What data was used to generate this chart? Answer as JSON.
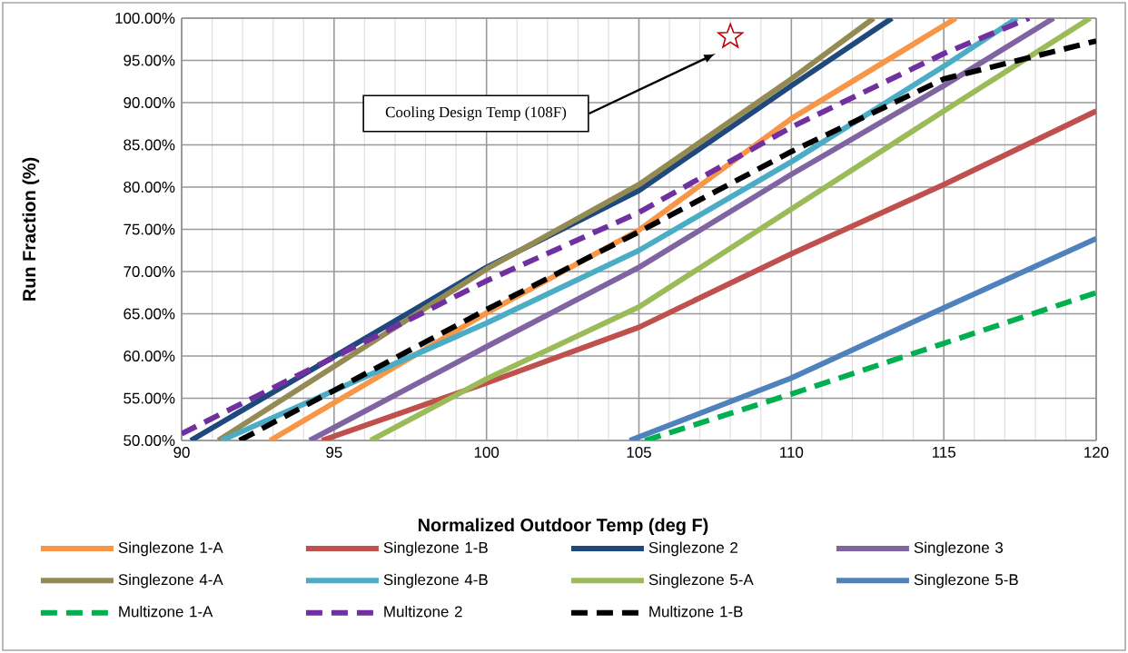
{
  "chart_data": {
    "type": "line",
    "xlabel": "Normalized Outdoor Temp (deg F)",
    "ylabel": "Run Fraction (%)",
    "xlim": [
      90,
      120
    ],
    "xticks": [
      90,
      95,
      100,
      105,
      110,
      115,
      120
    ],
    "ylim": [
      50,
      100
    ],
    "yticks": [
      {
        "value": 50,
        "label": "50.00%"
      },
      {
        "value": 55,
        "label": "55.00%"
      },
      {
        "value": 60,
        "label": "60.00%"
      },
      {
        "value": 65,
        "label": "65.00%"
      },
      {
        "value": 70,
        "label": "70.00%"
      },
      {
        "value": 75,
        "label": "75.00%"
      },
      {
        "value": 80,
        "label": "80.00%"
      },
      {
        "value": 85,
        "label": "85.00%"
      },
      {
        "value": 90,
        "label": "90.00%"
      },
      {
        "value": 95,
        "label": "95.00%"
      },
      {
        "value": 100,
        "label": "100.00%"
      }
    ],
    "grid": true,
    "legend": "bottom",
    "annotations": [
      "Cooling  Design Temp (108F)"
    ],
    "series": [
      {
        "name": "Singlezone 1-A",
        "color": "#f79646",
        "x": [
          92.9,
          100,
          105,
          110,
          115.4
        ],
        "values": [
          50,
          65.1,
          74.9,
          88.1,
          100
        ]
      },
      {
        "name": "Singlezone 1-B",
        "color": "#c0504d",
        "x": [
          94.6,
          100,
          105,
          110,
          115,
          120
        ],
        "values": [
          50,
          56.8,
          63.4,
          72.1,
          80.3,
          89
        ]
      },
      {
        "name": "Singlezone 2",
        "color": "#1f497d",
        "x": [
          90.3,
          100,
          105,
          110,
          113.3
        ],
        "values": [
          50,
          70.5,
          79.6,
          92,
          100
        ]
      },
      {
        "name": "Singlezone 3",
        "color": "#8064a2",
        "x": [
          94.2,
          100,
          105,
          110,
          115,
          118.6
        ],
        "values": [
          50,
          61.1,
          70.5,
          81.5,
          92,
          100
        ]
      },
      {
        "name": "Singlezone 4-A",
        "color": "#948a54",
        "x": [
          91.2,
          100,
          105,
          110,
          112.7
        ],
        "values": [
          50,
          70.3,
          80.3,
          92.8,
          100
        ]
      },
      {
        "name": "Singlezone 4-B",
        "color": "#4bacc6",
        "x": [
          91.3,
          100,
          105,
          110,
          115,
          117.4
        ],
        "values": [
          50,
          63.9,
          72.5,
          83,
          94.3,
          100
        ]
      },
      {
        "name": "Singlezone 5-A",
        "color": "#9bbb59",
        "x": [
          96.2,
          100,
          105,
          110,
          115,
          119.8
        ],
        "values": [
          50,
          57.3,
          65.8,
          77.4,
          89,
          100
        ]
      },
      {
        "name": "Singlezone 5-B",
        "color": "#4f81bd",
        "x": [
          104.7,
          110,
          115,
          120
        ],
        "values": [
          50,
          57.4,
          65.7,
          73.9
        ]
      },
      {
        "name": "Multizone 1-A",
        "color": "#00b050",
        "line_style": "dashed",
        "x": [
          105.2,
          110,
          115,
          120
        ],
        "values": [
          50,
          55.5,
          61.5,
          67.5
        ]
      },
      {
        "name": "Multizone 2",
        "color": "#7030a0",
        "line_style": "dashed",
        "x": [
          90,
          100,
          105,
          110,
          115,
          117.8
        ],
        "values": [
          50.8,
          68.9,
          77,
          87.1,
          95.8,
          100
        ]
      },
      {
        "name": "Multizone 1-B",
        "color": "#000000",
        "line_style": "dashed",
        "x": [
          91.9,
          100,
          105,
          110,
          115,
          120
        ],
        "values": [
          50,
          65.5,
          74.7,
          84.2,
          92.8,
          97.3
        ]
      },
      {
        "type": "scatter",
        "marker": "star",
        "color": "#c00000",
        "x": [
          108
        ],
        "values": [
          97.8
        ]
      }
    ]
  }
}
